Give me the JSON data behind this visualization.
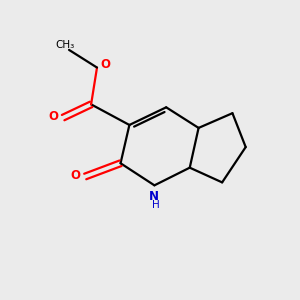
{
  "background_color": "#EBEBEB",
  "bond_color": "#000000",
  "atom_colors": {
    "O": "#FF0000",
    "N": "#0000CD",
    "C": "#000000",
    "H": "#000000"
  },
  "figsize": [
    3.0,
    3.0
  ],
  "dpi": 100,
  "xlim": [
    0,
    10
  ],
  "ylim": [
    0,
    10
  ]
}
